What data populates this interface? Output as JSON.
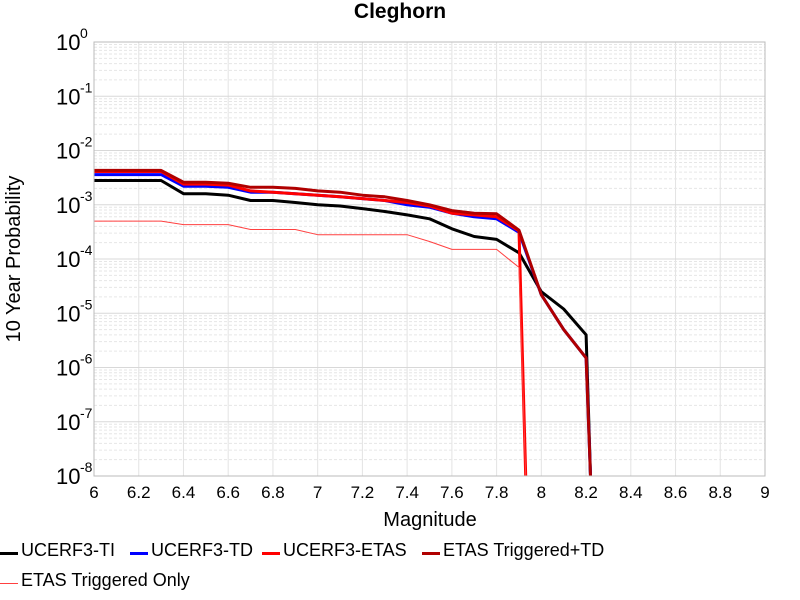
{
  "chart_data": {
    "type": "line",
    "title": "Cleghorn",
    "xlabel": "Magnitude",
    "ylabel": "10 Year Probability",
    "xlim": [
      6,
      9
    ],
    "x_ticks": [
      6,
      6.2,
      6.4,
      6.6,
      6.8,
      7,
      7.2,
      7.4,
      7.6,
      7.8,
      8,
      8.2,
      8.4,
      8.6,
      8.8,
      9
    ],
    "x_tick_labels": [
      "6",
      "6.2",
      "6.4",
      "6.6",
      "6.8",
      "7",
      "7.2",
      "7.4",
      "7.6",
      "7.8",
      "8",
      "8.2",
      "8.4",
      "8.6",
      "8.8",
      "9"
    ],
    "y_scale": "log",
    "ylim": [
      1e-08,
      1
    ],
    "y_tick_exponents": [
      0,
      -1,
      -2,
      -3,
      -4,
      -5,
      -6,
      -7,
      -8
    ],
    "grid": true,
    "legend_position": "bottom",
    "series": [
      {
        "name": "UCERF3-TI",
        "color": "#000000",
        "width": 3,
        "points": [
          [
            6.0,
            0.0028
          ],
          [
            6.3,
            0.0028
          ],
          [
            6.4,
            0.0016
          ],
          [
            6.5,
            0.0016
          ],
          [
            6.6,
            0.0015
          ],
          [
            6.7,
            0.0012
          ],
          [
            6.8,
            0.0012
          ],
          [
            6.9,
            0.0011
          ],
          [
            7.0,
            0.001
          ],
          [
            7.1,
            0.00095
          ],
          [
            7.2,
            0.00085
          ],
          [
            7.3,
            0.00075
          ],
          [
            7.4,
            0.00065
          ],
          [
            7.5,
            0.00055
          ],
          [
            7.6,
            0.00036
          ],
          [
            7.7,
            0.00026
          ],
          [
            7.8,
            0.00023
          ],
          [
            7.9,
            0.00013
          ],
          [
            8.0,
            2.5e-05
          ],
          [
            8.1,
            1.2e-05
          ],
          [
            8.2,
            4e-06
          ],
          [
            8.22,
            1e-08
          ]
        ]
      },
      {
        "name": "UCERF3-TD",
        "color": "#0000ff",
        "width": 3,
        "points": [
          [
            6.0,
            0.0036
          ],
          [
            6.3,
            0.0036
          ],
          [
            6.4,
            0.0022
          ],
          [
            6.5,
            0.0022
          ],
          [
            6.6,
            0.0021
          ],
          [
            6.7,
            0.0017
          ],
          [
            6.8,
            0.0017
          ],
          [
            6.9,
            0.0016
          ],
          [
            7.0,
            0.0015
          ],
          [
            7.1,
            0.0014
          ],
          [
            7.2,
            0.0013
          ],
          [
            7.3,
            0.0012
          ],
          [
            7.4,
            0.001
          ],
          [
            7.5,
            0.0009
          ],
          [
            7.6,
            0.0007
          ],
          [
            7.7,
            0.0006
          ],
          [
            7.8,
            0.00055
          ],
          [
            7.9,
            0.00031
          ],
          [
            8.0,
            2.2e-05
          ],
          [
            8.1,
            5e-06
          ],
          [
            8.2,
            1.5e-06
          ],
          [
            8.22,
            1e-08
          ]
        ]
      },
      {
        "name": "UCERF3-ETAS",
        "color": "#ff0000",
        "width": 3,
        "points": [
          [
            6.0,
            0.0041
          ],
          [
            6.3,
            0.0041
          ],
          [
            6.4,
            0.0024
          ],
          [
            6.5,
            0.0024
          ],
          [
            6.6,
            0.0023
          ],
          [
            6.7,
            0.0018
          ],
          [
            6.8,
            0.0017
          ],
          [
            6.9,
            0.0016
          ],
          [
            7.0,
            0.0015
          ],
          [
            7.1,
            0.0014
          ],
          [
            7.2,
            0.0013
          ],
          [
            7.3,
            0.0012
          ],
          [
            7.4,
            0.0011
          ],
          [
            7.5,
            0.00095
          ],
          [
            7.6,
            0.0007
          ],
          [
            7.7,
            0.00065
          ],
          [
            7.8,
            0.0006
          ],
          [
            7.9,
            0.00033
          ],
          [
            7.93,
            1e-08
          ]
        ]
      },
      {
        "name": "ETAS Triggered+TD",
        "color": "#b00000",
        "width": 3,
        "points": [
          [
            6.0,
            0.0043
          ],
          [
            6.3,
            0.0043
          ],
          [
            6.4,
            0.0026
          ],
          [
            6.5,
            0.0026
          ],
          [
            6.6,
            0.0025
          ],
          [
            6.7,
            0.0021
          ],
          [
            6.8,
            0.0021
          ],
          [
            6.9,
            0.002
          ],
          [
            7.0,
            0.0018
          ],
          [
            7.1,
            0.0017
          ],
          [
            7.2,
            0.0015
          ],
          [
            7.3,
            0.0014
          ],
          [
            7.4,
            0.0012
          ],
          [
            7.5,
            0.001
          ],
          [
            7.6,
            0.00078
          ],
          [
            7.7,
            0.0007
          ],
          [
            7.8,
            0.00068
          ],
          [
            7.9,
            0.00034
          ],
          [
            8.0,
            2.2e-05
          ],
          [
            8.1,
            5e-06
          ],
          [
            8.2,
            1.5e-06
          ],
          [
            8.22,
            1e-08
          ]
        ]
      },
      {
        "name": "ETAS Triggered Only",
        "color": "#ff4040",
        "width": 1,
        "points": [
          [
            6.0,
            0.0005
          ],
          [
            6.3,
            0.0005
          ],
          [
            6.4,
            0.00043
          ],
          [
            6.6,
            0.00043
          ],
          [
            6.7,
            0.00035
          ],
          [
            6.8,
            0.00035
          ],
          [
            6.9,
            0.00035
          ],
          [
            7.0,
            0.00028
          ],
          [
            7.2,
            0.00028
          ],
          [
            7.3,
            0.00028
          ],
          [
            7.4,
            0.00028
          ],
          [
            7.5,
            0.00021
          ],
          [
            7.6,
            0.00015
          ],
          [
            7.7,
            0.00015
          ],
          [
            7.8,
            0.00015
          ],
          [
            7.9,
            7e-05
          ],
          [
            7.93,
            1e-08
          ]
        ]
      }
    ]
  }
}
